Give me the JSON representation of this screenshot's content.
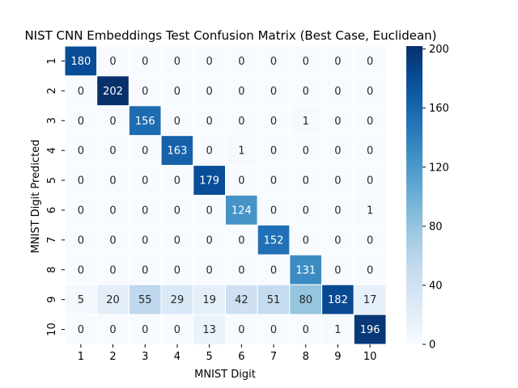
{
  "chart_data": {
    "type": "heatmap",
    "title": "NIST CNN Embeddings Test Confusion Matrix (Best Case, Euclidean)",
    "xlabel": "MNIST Digit",
    "ylabel": "MNIST Digit Predicted",
    "x_categories": [
      "1",
      "2",
      "3",
      "4",
      "5",
      "6",
      "7",
      "8",
      "9",
      "10"
    ],
    "y_categories": [
      "1",
      "2",
      "3",
      "4",
      "5",
      "6",
      "7",
      "8",
      "9",
      "10"
    ],
    "values": [
      [
        180,
        0,
        0,
        0,
        0,
        0,
        0,
        0,
        0,
        0
      ],
      [
        0,
        202,
        0,
        0,
        0,
        0,
        0,
        0,
        0,
        0
      ],
      [
        0,
        0,
        156,
        0,
        0,
        0,
        0,
        1,
        0,
        0
      ],
      [
        0,
        0,
        0,
        163,
        0,
        1,
        0,
        0,
        0,
        0
      ],
      [
        0,
        0,
        0,
        0,
        179,
        0,
        0,
        0,
        0,
        0
      ],
      [
        0,
        0,
        0,
        0,
        0,
        124,
        0,
        0,
        0,
        1
      ],
      [
        0,
        0,
        0,
        0,
        0,
        0,
        152,
        0,
        0,
        0
      ],
      [
        0,
        0,
        0,
        0,
        0,
        0,
        0,
        131,
        0,
        0
      ],
      [
        5,
        20,
        55,
        29,
        19,
        42,
        51,
        80,
        182,
        17
      ],
      [
        0,
        0,
        0,
        0,
        13,
        0,
        0,
        0,
        1,
        196
      ]
    ],
    "colormap": "Blues",
    "vmin": 0,
    "vmax": 202,
    "colorbar_ticks": [
      0,
      40,
      80,
      120,
      160,
      200
    ]
  }
}
